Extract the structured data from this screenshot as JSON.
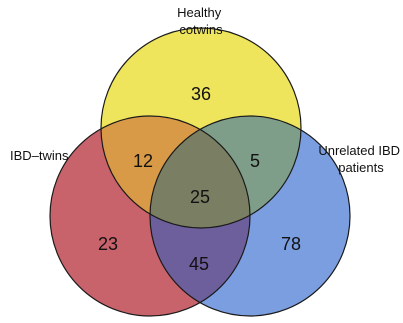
{
  "sets": [
    {
      "id": "healthy",
      "label_lines": [
        "Healthy",
        "cotwins"
      ],
      "color": "#eee55c"
    },
    {
      "id": "ibd_twins",
      "label_lines": [
        "IBD–twins"
      ],
      "color": "#c9636b"
    },
    {
      "id": "unrelated",
      "label_lines": [
        "Unrelated IBD",
        "patients"
      ],
      "color": "#7b9ee0"
    }
  ],
  "regions": {
    "healthy_only": "36",
    "healthy_ibd_twins": "12",
    "healthy_unrelated": "5",
    "all_three": "25",
    "ibd_twins_only": "23",
    "ibd_twins_unrelated": "45",
    "unrelated_only": "78"
  },
  "colors": {
    "stroke": "#1a1a1a",
    "healthy_ibd_twins": "#d89a46",
    "healthy_unrelated": "#7f9e8a",
    "ibd_twins_unrelated": "#6d5e9c",
    "all_three": "#7a7f63"
  }
}
